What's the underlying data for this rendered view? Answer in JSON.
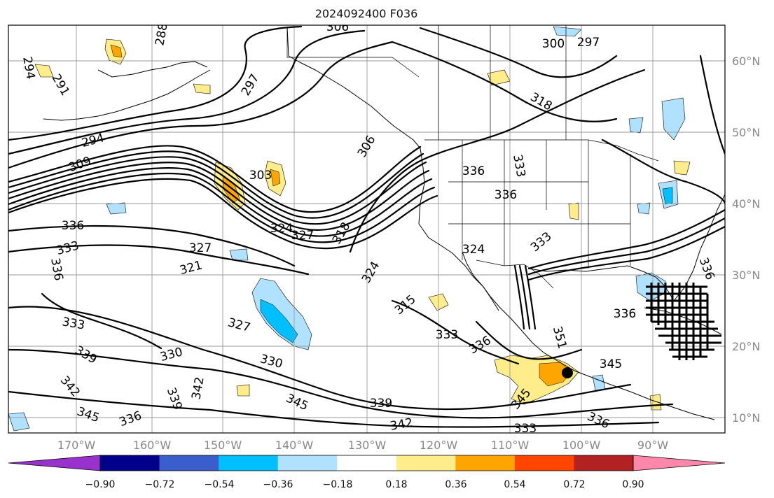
{
  "title": "2024092400 F036",
  "map": {
    "lat_labels": [
      "60°N",
      "50°N",
      "40°N",
      "30°N",
      "20°N",
      "10°N"
    ],
    "lon_labels": [
      "170°W",
      "160°W",
      "150°W",
      "140°W",
      "130°W",
      "120°W",
      "110°W",
      "100°W",
      "90°W"
    ],
    "contour_labels": [
      "306",
      "297",
      "300",
      "288",
      "294",
      "291",
      "297",
      "318",
      "294",
      "309",
      "306",
      "303",
      "336",
      "333",
      "336",
      "336",
      "333",
      "324",
      "327",
      "327",
      "321",
      "318",
      "324",
      "324",
      "333",
      "336",
      "333",
      "327",
      "315",
      "333",
      "336",
      "330",
      "330",
      "339",
      "342",
      "345",
      "336",
      "339",
      "345",
      "342",
      "339",
      "342",
      "333",
      "345",
      "336",
      "345",
      "351",
      "336",
      "336"
    ]
  },
  "colorbar": {
    "ticks": [
      "−0.90",
      "−0.72",
      "−0.54",
      "−0.36",
      "−0.18",
      "0.18",
      "0.36",
      "0.54",
      "0.72",
      "0.90"
    ],
    "colors": [
      "#9932cc",
      "#00008b",
      "#3a5fcd",
      "#00bfff",
      "#b0e2ff",
      "#ffffff",
      "#ffec8b",
      "#ffa500",
      "#ff4500",
      "#b22222",
      "#ff88aa"
    ]
  },
  "colors": {
    "contour": "#000000",
    "gridline": "#999999",
    "axis_label": "#888888"
  }
}
